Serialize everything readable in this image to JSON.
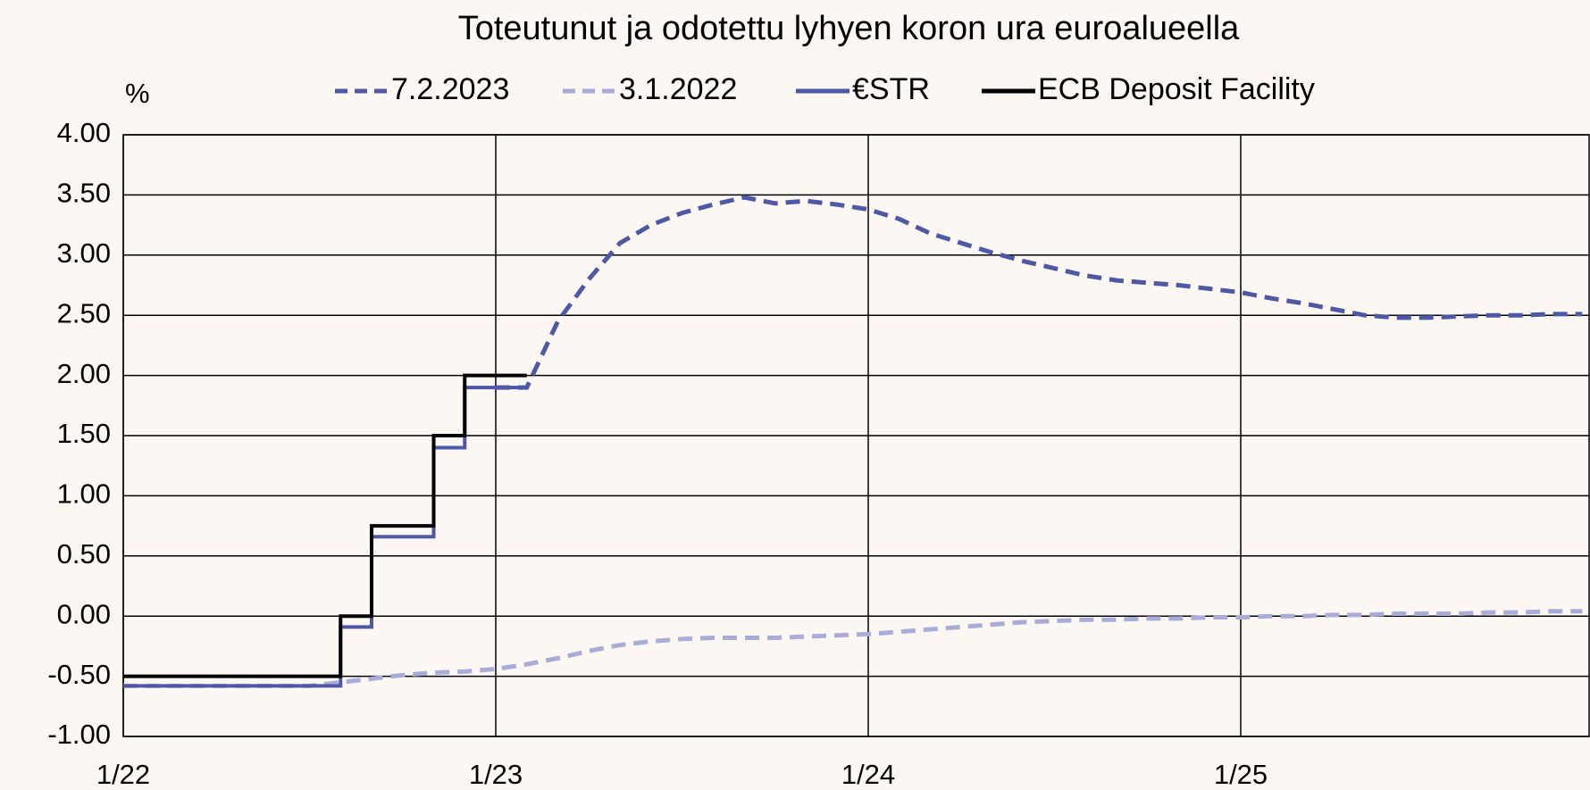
{
  "chart_data": {
    "type": "line",
    "title": "Toteutunut ja odotettu lyhyen koron ura euroalueella",
    "y_label": "%",
    "x": [
      "1/22",
      "2/22",
      "3/22",
      "4/22",
      "5/22",
      "6/22",
      "7/22",
      "8/22",
      "9/22",
      "10/22",
      "11/22",
      "12/22",
      "1/23",
      "2/23",
      "3/23",
      "4/23",
      "5/23",
      "6/23",
      "7/23",
      "8/23",
      "9/23",
      "10/23",
      "11/23",
      "12/23",
      "1/24",
      "2/24",
      "3/24",
      "4/24",
      "5/24",
      "6/24",
      "7/24",
      "8/24",
      "9/24",
      "10/24",
      "11/24",
      "12/24",
      "1/25",
      "2/25",
      "3/25",
      "4/25",
      "5/25",
      "6/25",
      "7/25",
      "8/25",
      "9/25",
      "10/25",
      "11/25",
      "12/25"
    ],
    "xticks": [
      "1/22",
      "1/23",
      "1/24",
      "1/25"
    ],
    "ylim": [
      -1,
      4
    ],
    "yticks": [
      {
        "value": 4,
        "label": "4.00"
      },
      {
        "value": 3.5,
        "label": "3.50"
      },
      {
        "value": 3,
        "label": "3.00"
      },
      {
        "value": 2.5,
        "label": "2.50"
      },
      {
        "value": 2,
        "label": "2.00"
      },
      {
        "value": 1.5,
        "label": "1.50"
      },
      {
        "value": 1,
        "label": "1.00"
      },
      {
        "value": 0.5,
        "label": "0.50"
      },
      {
        "value": 0,
        "label": "0.00"
      },
      {
        "value": -0.5,
        "label": "-0.50"
      },
      {
        "value": -1,
        "label": "-1.00"
      }
    ],
    "grid": true,
    "series": [
      {
        "name": "7.2.2023",
        "color": "#4d58a6",
        "dashed": true,
        "step": false,
        "values": [
          null,
          null,
          null,
          null,
          null,
          null,
          null,
          null,
          null,
          null,
          null,
          null,
          1.9,
          1.9,
          2.45,
          2.8,
          3.1,
          3.25,
          3.35,
          3.42,
          3.48,
          3.43,
          3.45,
          3.42,
          3.38,
          3.3,
          3.18,
          3.1,
          3.02,
          2.95,
          2.89,
          2.83,
          2.79,
          2.77,
          2.75,
          2.72,
          2.69,
          2.64,
          2.6,
          2.55,
          2.5,
          2.48,
          2.48,
          2.49,
          2.5,
          2.5,
          2.51,
          2.51
        ]
      },
      {
        "name": "3.1.2022",
        "color": "#a8acd9",
        "dashed": true,
        "step": false,
        "values": [
          -0.58,
          -0.58,
          -0.58,
          -0.58,
          -0.58,
          -0.58,
          -0.58,
          -0.55,
          -0.52,
          -0.49,
          -0.47,
          -0.46,
          -0.44,
          -0.4,
          -0.35,
          -0.29,
          -0.24,
          -0.21,
          -0.19,
          -0.18,
          -0.18,
          -0.18,
          -0.17,
          -0.16,
          -0.15,
          -0.13,
          -0.11,
          -0.09,
          -0.07,
          -0.05,
          -0.04,
          -0.03,
          -0.03,
          -0.02,
          -0.02,
          -0.01,
          -0.01,
          0,
          0,
          0.01,
          0.01,
          0.02,
          0.02,
          0.02,
          0.03,
          0.03,
          0.04,
          0.04
        ]
      },
      {
        "name": "€STR",
        "color": "#4d58a6",
        "dashed": false,
        "step": true,
        "values": [
          -0.58,
          -0.58,
          -0.58,
          -0.58,
          -0.58,
          -0.58,
          -0.58,
          -0.09,
          0.66,
          0.66,
          1.4,
          1.9,
          1.9,
          null,
          null,
          null,
          null,
          null,
          null,
          null,
          null,
          null,
          null,
          null,
          null,
          null,
          null,
          null,
          null,
          null,
          null,
          null,
          null,
          null,
          null,
          null,
          null,
          null,
          null,
          null,
          null,
          null,
          null,
          null,
          null,
          null,
          null,
          null
        ]
      },
      {
        "name": "ECB Deposit Facility",
        "color": "#000000",
        "dashed": false,
        "step": true,
        "values": [
          -0.5,
          -0.5,
          -0.5,
          -0.5,
          -0.5,
          -0.5,
          -0.5,
          0,
          0.75,
          0.75,
          1.5,
          2,
          2,
          null,
          null,
          null,
          null,
          null,
          null,
          null,
          null,
          null,
          null,
          null,
          null,
          null,
          null,
          null,
          null,
          null,
          null,
          null,
          null,
          null,
          null,
          null,
          null,
          null,
          null,
          null,
          null,
          null,
          null,
          null,
          null,
          null,
          null,
          null
        ]
      }
    ]
  }
}
